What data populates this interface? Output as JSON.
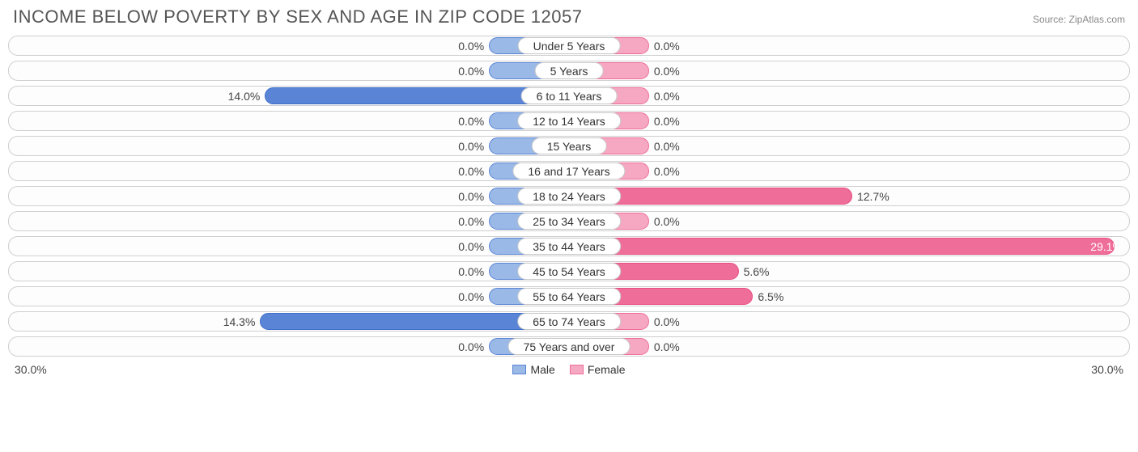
{
  "title": "INCOME BELOW POVERTY BY SEX AND AGE IN ZIP CODE 12057",
  "source": "Source: ZipAtlas.com",
  "axis_max": 30.0,
  "axis_label_left": "30.0%",
  "axis_label_right": "30.0%",
  "legend": {
    "male": "Male",
    "female": "Female"
  },
  "colors": {
    "male_fill": "#9bb9e6",
    "male_border": "#5a85d6",
    "male_strong_fill": "#5a85d6",
    "male_strong_border": "#3f6fc9",
    "female_fill": "#f6a8c3",
    "female_border": "#ee6e99",
    "female_strong_fill": "#ee6e99",
    "female_strong_border": "#e84e84",
    "row_border": "#cfcfcf",
    "text": "#444444",
    "title_color": "#555555"
  },
  "base_bar_pct": 5.0,
  "rows": [
    {
      "label": "Under 5 Years",
      "male": 0.0,
      "female": 0.0
    },
    {
      "label": "5 Years",
      "male": 0.0,
      "female": 0.0
    },
    {
      "label": "6 to 11 Years",
      "male": 14.0,
      "female": 0.0
    },
    {
      "label": "12 to 14 Years",
      "male": 0.0,
      "female": 0.0
    },
    {
      "label": "15 Years",
      "male": 0.0,
      "female": 0.0
    },
    {
      "label": "16 and 17 Years",
      "male": 0.0,
      "female": 0.0
    },
    {
      "label": "18 to 24 Years",
      "male": 0.0,
      "female": 12.7
    },
    {
      "label": "25 to 34 Years",
      "male": 0.0,
      "female": 0.0
    },
    {
      "label": "35 to 44 Years",
      "male": 0.0,
      "female": 29.1
    },
    {
      "label": "45 to 54 Years",
      "male": 0.0,
      "female": 5.6
    },
    {
      "label": "55 to 64 Years",
      "male": 0.0,
      "female": 6.5
    },
    {
      "label": "65 to 74 Years",
      "male": 14.3,
      "female": 0.0
    },
    {
      "label": "75 Years and over",
      "male": 0.0,
      "female": 0.0
    }
  ]
}
